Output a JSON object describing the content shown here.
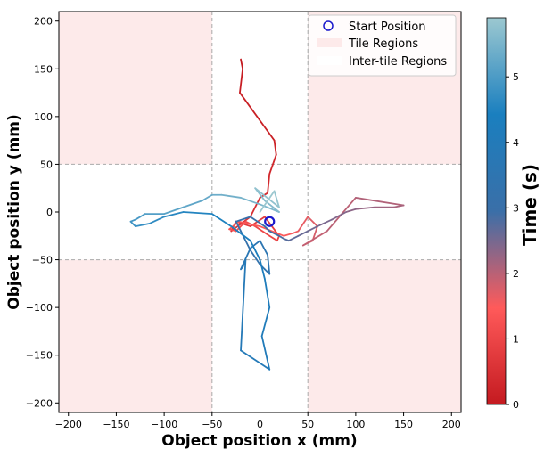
{
  "chart_data": {
    "type": "line",
    "xlabel": "Object position x (mm)",
    "ylabel": "Object position y (mm)",
    "xlim": [
      -210,
      210
    ],
    "ylim": [
      -210,
      210
    ],
    "x_ticks": [
      -200,
      -150,
      -100,
      -50,
      0,
      50,
      100,
      150,
      200
    ],
    "y_ticks": [
      -200,
      -150,
      -100,
      -50,
      0,
      50,
      100,
      150,
      200
    ],
    "tile_boundaries": [
      -50,
      50
    ],
    "legend": {
      "placement": "top-right",
      "entries": [
        "Start Position",
        "Tile Regions",
        "Inter-tile Regions"
      ]
    },
    "start_position": {
      "x": 10,
      "y": -10
    },
    "colorbar": {
      "label": "Time (s)",
      "min": 0,
      "max": 5.9,
      "ticks": [
        0,
        1,
        2,
        3,
        4,
        5
      ],
      "stops": [
        "#c41a20",
        "#ff5a5a",
        "#3a6fa8",
        "#1a7fbf",
        "#9cc8d0"
      ]
    },
    "trajectory": {
      "x": [
        -20,
        -18,
        -21,
        15,
        17,
        10,
        8,
        0,
        -10,
        -30,
        -25,
        -10,
        5,
        20,
        18,
        10,
        -5,
        -15,
        -25,
        -32,
        -22,
        0,
        25,
        35,
        40,
        50,
        60,
        55,
        45,
        70,
        100,
        150,
        140,
        120,
        100,
        90,
        75,
        60,
        50,
        40,
        30,
        25,
        20,
        10,
        5,
        -10,
        -25,
        -20,
        -10,
        0,
        5,
        10,
        8,
        0,
        -10,
        -20,
        -18,
        -15,
        -20,
        10,
        2,
        10,
        5,
        0,
        -10,
        -30,
        -50,
        -80,
        -100,
        -115,
        -130,
        -135,
        -130,
        -125,
        -120,
        -100,
        -80,
        -60,
        -50,
        -40,
        -20,
        0,
        20,
        5,
        -5,
        20,
        15,
        0
      ],
      "y": [
        160,
        150,
        125,
        75,
        60,
        40,
        20,
        15,
        -5,
        -20,
        -10,
        -15,
        -5,
        -25,
        -30,
        -25,
        -15,
        -10,
        -20,
        -18,
        -10,
        -15,
        -25,
        -22,
        -20,
        -5,
        -15,
        -30,
        -35,
        -20,
        15,
        7,
        5,
        5,
        3,
        0,
        -8,
        -15,
        -20,
        -25,
        -30,
        -28,
        -25,
        -20,
        -15,
        -5,
        -10,
        -20,
        -40,
        -55,
        -60,
        -65,
        -45,
        -30,
        -38,
        -60,
        -58,
        -50,
        -145,
        -165,
        -130,
        -100,
        -70,
        -50,
        -30,
        -15,
        -2,
        0,
        -5,
        -12,
        -15,
        -10,
        -8,
        -5,
        -2,
        -2,
        5,
        12,
        18,
        18,
        15,
        8,
        0,
        12,
        25,
        5,
        22,
        0
      ],
      "time_span": [
        0,
        5.9
      ]
    }
  }
}
